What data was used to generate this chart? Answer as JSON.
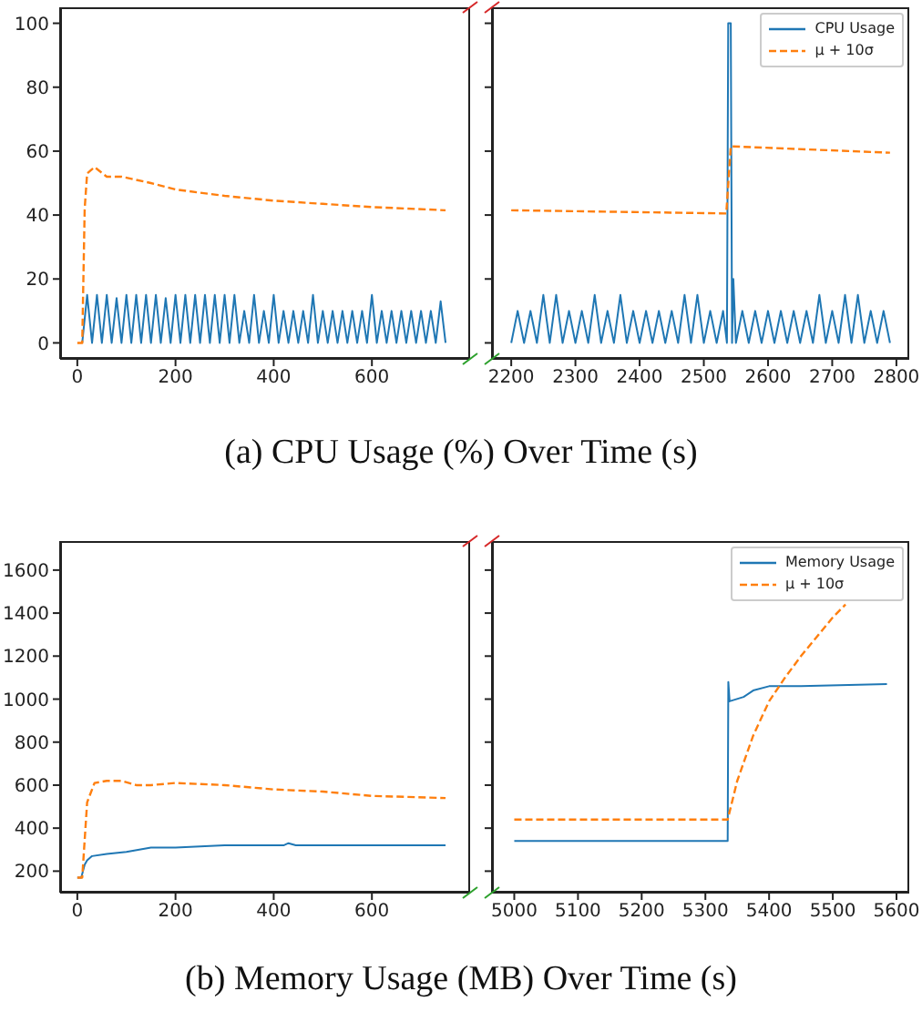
{
  "chart_data": [
    {
      "type": "line",
      "title": "(a) CPU Usage (%) Over Time (s)",
      "xlim": [
        -35,
        800
      ],
      "xticks": [
        0,
        200,
        400,
        600
      ],
      "ylim": [
        -5,
        105
      ],
      "yticks": [
        0,
        20,
        40,
        60,
        80,
        100
      ],
      "legend": false,
      "series": [
        {
          "color": "#1f77b4",
          "line_style": "solid",
          "x": [
            10,
            20,
            30,
            40,
            50,
            60,
            70,
            80,
            90,
            100,
            110,
            120,
            130,
            140,
            150,
            160,
            170,
            180,
            190,
            200,
            210,
            220,
            230,
            240,
            250,
            260,
            270,
            280,
            290,
            300,
            310,
            320,
            330,
            340,
            350,
            360,
            370,
            380,
            390,
            400,
            410,
            420,
            430,
            440,
            450,
            460,
            470,
            480,
            490,
            500,
            510,
            520,
            530,
            540,
            550,
            560,
            570,
            580,
            590,
            600,
            610,
            620,
            630,
            640,
            650,
            660,
            670,
            680,
            690,
            700,
            710,
            720,
            730,
            740,
            750
          ],
          "values": [
            0,
            15,
            0,
            15,
            0,
            15,
            0,
            14,
            0,
            15,
            0,
            15,
            0,
            15,
            0,
            15,
            0,
            14,
            0,
            15,
            0,
            15,
            0,
            15,
            0,
            15,
            0,
            15,
            0,
            15,
            0,
            15,
            0,
            10,
            0,
            15,
            0,
            10,
            0,
            15,
            0,
            10,
            0,
            10,
            0,
            10,
            0,
            15,
            0,
            10,
            0,
            10,
            0,
            10,
            0,
            10,
            0,
            10,
            0,
            15,
            0,
            10,
            0,
            10,
            0,
            10,
            0,
            10,
            0,
            10,
            0,
            10,
            0,
            13,
            0
          ]
        },
        {
          "color": "#ff7f0e",
          "line_style": "dashed",
          "x": [
            0,
            10,
            15,
            20,
            35,
            60,
            90,
            150,
            200,
            300,
            400,
            500,
            600,
            750
          ],
          "values": [
            0,
            0,
            42,
            53,
            55,
            52,
            52,
            50,
            48,
            46,
            44.5,
            43.5,
            42.5,
            41.5
          ]
        }
      ]
    },
    {
      "type": "line",
      "xlim": [
        2170,
        2820
      ],
      "xticks": [
        2200,
        2300,
        2400,
        2500,
        2600,
        2700,
        2800
      ],
      "ylim": [
        -5,
        105
      ],
      "yticks": [
        0,
        20,
        40,
        60,
        80,
        100
      ],
      "tick_labels": "x",
      "legend": "top right",
      "series": [
        {
          "name": "CPU Usage",
          "color": "#1f77b4",
          "line_style": "solid",
          "x": [
            2200,
            2210,
            2220,
            2230,
            2240,
            2250,
            2260,
            2270,
            2280,
            2290,
            2300,
            2310,
            2320,
            2330,
            2340,
            2350,
            2360,
            2370,
            2380,
            2390,
            2400,
            2410,
            2420,
            2430,
            2440,
            2450,
            2460,
            2470,
            2480,
            2490,
            2500,
            2510,
            2520,
            2530,
            2536,
            2538,
            2542,
            2544,
            2546,
            2550,
            2560,
            2570,
            2580,
            2590,
            2600,
            2610,
            2620,
            2630,
            2640,
            2650,
            2660,
            2670,
            2680,
            2690,
            2700,
            2710,
            2720,
            2730,
            2740,
            2750,
            2760,
            2770,
            2780,
            2790
          ],
          "values": [
            0,
            10,
            0,
            10,
            0,
            15,
            0,
            15,
            0,
            10,
            0,
            10,
            0,
            15,
            0,
            10,
            0,
            15,
            0,
            10,
            0,
            10,
            0,
            10,
            0,
            10,
            0,
            15,
            0,
            15,
            0,
            10,
            0,
            10,
            0,
            100,
            100,
            0,
            20,
            0,
            10,
            0,
            10,
            0,
            10,
            0,
            10,
            0,
            10,
            0,
            10,
            0,
            15,
            0,
            10,
            0,
            15,
            0,
            15,
            0,
            10,
            0,
            10,
            0
          ]
        },
        {
          "name": "μ + 10σ",
          "color": "#ff7f0e",
          "line_style": "dashed",
          "x": [
            2200,
            2535,
            2542,
            2790
          ],
          "values": [
            41.5,
            40.5,
            61.5,
            59.5
          ]
        }
      ]
    },
    {
      "type": "line",
      "title": "(b) Memory Usage (MB) Over Time (s)",
      "xlim": [
        -35,
        800
      ],
      "xticks": [
        0,
        200,
        400,
        600
      ],
      "ylim": [
        100,
        1735
      ],
      "yticks": [
        200,
        400,
        600,
        800,
        1000,
        1200,
        1400,
        1600
      ],
      "legend": false,
      "series": [
        {
          "color": "#1f77b4",
          "line_style": "solid",
          "x": [
            0,
            8,
            15,
            20,
            30,
            60,
            100,
            150,
            200,
            300,
            420,
            430,
            445,
            750
          ],
          "values": [
            170,
            170,
            230,
            250,
            270,
            280,
            290,
            310,
            310,
            320,
            320,
            330,
            320,
            320
          ]
        },
        {
          "color": "#ff7f0e",
          "line_style": "dashed",
          "x": [
            0,
            10,
            20,
            35,
            60,
            90,
            120,
            150,
            200,
            300,
            400,
            500,
            600,
            750
          ],
          "values": [
            170,
            170,
            520,
            610,
            620,
            620,
            600,
            600,
            610,
            600,
            580,
            570,
            550,
            540
          ]
        }
      ]
    },
    {
      "type": "line",
      "xlim": [
        4965,
        5620
      ],
      "xticks": [
        5000,
        5100,
        5200,
        5300,
        5400,
        5500,
        5600
      ],
      "ylim": [
        100,
        1735
      ],
      "yticks": [
        200,
        400,
        600,
        800,
        1000,
        1200,
        1400,
        1600
      ],
      "tick_labels": "x",
      "legend": "top right",
      "series": [
        {
          "name": "Memory Usage",
          "color": "#1f77b4",
          "line_style": "solid",
          "x": [
            5000,
            5335,
            5336,
            5338,
            5360,
            5375,
            5400,
            5450,
            5585
          ],
          "values": [
            340,
            340,
            1080,
            990,
            1010,
            1040,
            1060,
            1060,
            1070
          ]
        },
        {
          "name": "μ + 10σ",
          "color": "#ff7f0e",
          "line_style": "dashed",
          "x": [
            5000,
            5335,
            5350,
            5375,
            5400,
            5425,
            5450,
            5500,
            5520
          ],
          "values": [
            440,
            440,
            620,
            830,
            990,
            1100,
            1200,
            1380,
            1440
          ]
        }
      ]
    }
  ]
}
